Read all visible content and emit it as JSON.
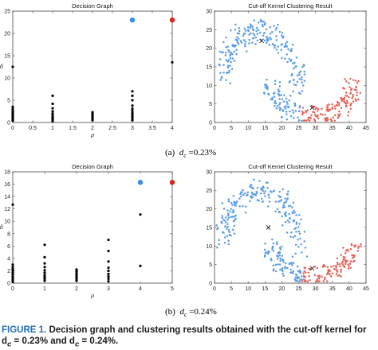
{
  "figure": {
    "caption_label": "FIGURE 1.",
    "caption_text": "Decision graph and clustering results obtained with the cut-off kernel for d",
    "caption_math_1": "c",
    "caption_mid": " = 0.23% and d",
    "caption_math_2": "c",
    "caption_end": " = 0.24%.",
    "subcaption_a_label": "(a)",
    "subcaption_a_var": "d",
    "subcaption_a_sub": "c",
    "subcaption_a_value": "=0.23%",
    "subcaption_b_label": "(b)",
    "subcaption_b_var": "d",
    "subcaption_b_sub": "c",
    "subcaption_b_value": "=0.24%"
  },
  "colors": {
    "blue": "#3c8de0",
    "red": "#d7261e",
    "scatter_blue": "#5a9ce6",
    "scatter_red": "#e5645a",
    "black": "#000000"
  },
  "chart_data": [
    {
      "type": "scatter",
      "title": "Decision Graph",
      "xlabel": "ρ",
      "ylabel": "δ",
      "xlim": [
        0,
        4
      ],
      "ylim": [
        0,
        25
      ],
      "xticks": [
        "0",
        "0.5",
        "1",
        "1.5",
        "2",
        "2.5",
        "3",
        "3.5",
        "4"
      ],
      "yticks": [
        "0",
        "5",
        "10",
        "15",
        "20",
        "25"
      ],
      "series": [
        {
          "color": "black",
          "points": [
            [
              0,
              12.5
            ],
            [
              0,
              3.5
            ],
            [
              0,
              3.0
            ],
            [
              0,
              2.6
            ],
            [
              0,
              2.2
            ],
            [
              0,
              1.9
            ],
            [
              0,
              1.6
            ],
            [
              0,
              1.3
            ],
            [
              0,
              1.0
            ],
            [
              0,
              0.7
            ],
            [
              0,
              0.4
            ],
            [
              1,
              6.0
            ],
            [
              1,
              4.2
            ],
            [
              1,
              3.2
            ],
            [
              1,
              2.5
            ],
            [
              1,
              2.0
            ],
            [
              1,
              1.6
            ],
            [
              1,
              1.2
            ],
            [
              1,
              0.9
            ],
            [
              1,
              0.6
            ],
            [
              1,
              0.3
            ],
            [
              2,
              2.3
            ],
            [
              2,
              2.0
            ],
            [
              2,
              1.7
            ],
            [
              2,
              1.4
            ],
            [
              2,
              1.1
            ],
            [
              2,
              0.8
            ],
            [
              2,
              0.5
            ],
            [
              3,
              7.0
            ],
            [
              3,
              6.0
            ],
            [
              3,
              5.0
            ],
            [
              3,
              3.8
            ],
            [
              3,
              3.1
            ],
            [
              3,
              2.6
            ],
            [
              3,
              2.1
            ],
            [
              3,
              1.7
            ],
            [
              3,
              1.3
            ],
            [
              3,
              0.9
            ],
            [
              3,
              0.5
            ],
            [
              4,
              13.5
            ]
          ]
        },
        {
          "color": "blue",
          "points": [
            [
              3,
              23
            ]
          ]
        },
        {
          "color": "red",
          "points": [
            [
              4,
              23
            ]
          ]
        }
      ]
    },
    {
      "type": "scatter",
      "title": "Cut-off Kernel Clustering Result",
      "xlabel": "",
      "ylabel": "",
      "xlim": [
        0,
        45
      ],
      "ylim": [
        0,
        30
      ],
      "xticks": [
        "0",
        "5",
        "10",
        "15",
        "20",
        "25",
        "30",
        "35",
        "40",
        "45"
      ],
      "yticks": [
        "0",
        "5",
        "10",
        "15",
        "20",
        "25",
        "30"
      ],
      "centers": [
        [
          14,
          22
        ],
        [
          29,
          4
        ]
      ],
      "clusters": [
        {
          "color": "scatter_blue",
          "center_index": 0
        },
        {
          "color": "scatter_red",
          "center_index": 1
        }
      ]
    },
    {
      "type": "scatter",
      "title": "Decision Graph",
      "xlabel": "ρ",
      "ylabel": "δ",
      "xlim": [
        0,
        5
      ],
      "ylim": [
        0,
        18
      ],
      "xticks": [
        "0",
        "1",
        "2",
        "3",
        "4",
        "5"
      ],
      "yticks": [
        "0",
        "2",
        "4",
        "6",
        "8",
        "10",
        "12",
        "14",
        "16",
        "18"
      ],
      "series": [
        {
          "color": "black",
          "points": [
            [
              0,
              12.7
            ],
            [
              0,
              3.0
            ],
            [
              0,
              2.6
            ],
            [
              0,
              2.3
            ],
            [
              0,
              2.0
            ],
            [
              0,
              1.7
            ],
            [
              0,
              1.4
            ],
            [
              0,
              1.1
            ],
            [
              0,
              0.8
            ],
            [
              0,
              0.5
            ],
            [
              0,
              0.2
            ],
            [
              1,
              6.2
            ],
            [
              1,
              4.2
            ],
            [
              1,
              3.2
            ],
            [
              1,
              2.6
            ],
            [
              1,
              2.1
            ],
            [
              1,
              1.7
            ],
            [
              1,
              1.3
            ],
            [
              1,
              1.0
            ],
            [
              1,
              0.7
            ],
            [
              1,
              0.4
            ],
            [
              2,
              2.2
            ],
            [
              2,
              1.9
            ],
            [
              2,
              1.6
            ],
            [
              2,
              1.3
            ],
            [
              2,
              1.0
            ],
            [
              2,
              0.7
            ],
            [
              2,
              0.4
            ],
            [
              3,
              7.0
            ],
            [
              3,
              5.2
            ],
            [
              3,
              3.5
            ],
            [
              3,
              2.5
            ],
            [
              3,
              2.0
            ],
            [
              3,
              1.5
            ],
            [
              3,
              1.1
            ],
            [
              3,
              0.7
            ],
            [
              3,
              0.3
            ],
            [
              4,
              11.1
            ],
            [
              4,
              2.8
            ]
          ]
        },
        {
          "color": "blue",
          "points": [
            [
              4,
              16.3
            ]
          ]
        },
        {
          "color": "red",
          "points": [
            [
              5,
              16.3
            ]
          ]
        }
      ]
    },
    {
      "type": "scatter",
      "title": "Cut-off Kernel Clustering Result",
      "xlabel": "",
      "ylabel": "",
      "xlim": [
        0,
        45
      ],
      "ylim": [
        0,
        30
      ],
      "xticks": [
        "0",
        "5",
        "10",
        "15",
        "20",
        "25",
        "30",
        "35",
        "40",
        "45"
      ],
      "yticks": [
        "0",
        "5",
        "10",
        "15",
        "20",
        "25",
        "30"
      ],
      "centers": [
        [
          16,
          15
        ],
        [
          29,
          4
        ]
      ],
      "clusters": [
        {
          "color": "scatter_blue",
          "center_index": 0
        },
        {
          "color": "scatter_red",
          "center_index": 1
        }
      ]
    }
  ]
}
